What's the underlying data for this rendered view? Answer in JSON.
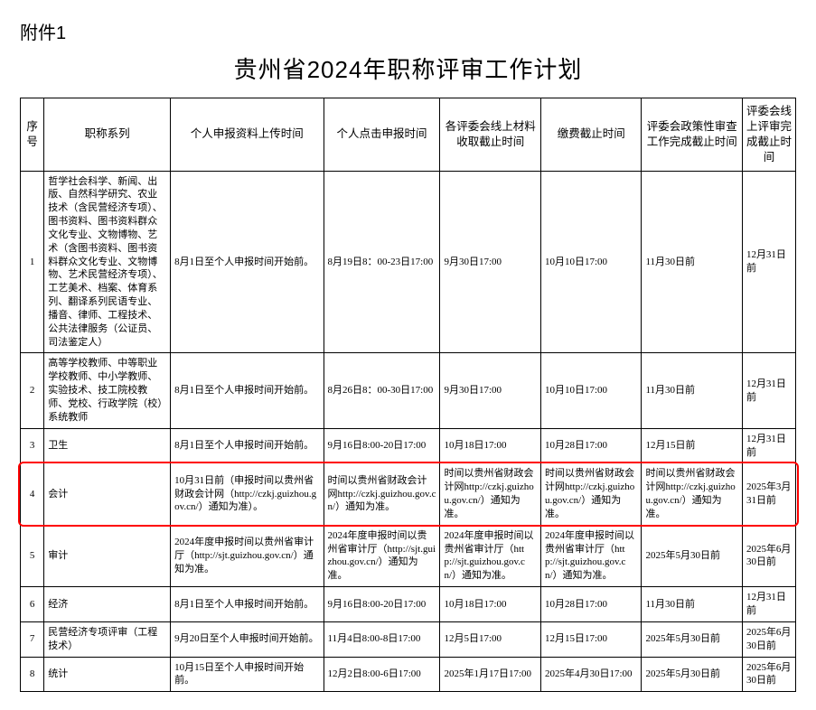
{
  "attachment_label": "附件1",
  "title": "贵州省2024年职称评审工作计划",
  "headers": {
    "idx": "序号",
    "series": "职称系列",
    "upload": "个人申报资料上传时间",
    "submit": "个人点击申报时间",
    "collect": "各评委会线上材料收取截止时间",
    "pay": "缴费截止时间",
    "policy": "评委会政策性审查工作完成截止时间",
    "finish": "评委会线上评审完成截止时间"
  },
  "rows": [
    {
      "idx": "1",
      "series": "哲学社会科学、新闻、出版、自然科学研究、农业技术（含民营经济专项）、图书资料、图书资料群众文化专业、文物博物、艺术（含图书资料、图书资料群众文化专业、文物博物、艺术民营经济专项）、工艺美术、档案、体育系列、翻译系列民语专业、播音、律师、工程技术、公共法律服务（公证员、司法鉴定人）",
      "upload": "8月1日至个人申报时间开始前。",
      "submit": "8月19日8：00-23日17:00",
      "collect": "9月30日17:00",
      "pay": "10月10日17:00",
      "policy": "11月30日前",
      "finish": "12月31日前"
    },
    {
      "idx": "2",
      "series": "高等学校教师、中等职业学校教师、中小学教师、实验技术、技工院校教师、党校、行政学院（校）系统教师",
      "upload": "8月1日至个人申报时间开始前。",
      "submit": "8月26日8：00-30日17:00",
      "collect": "9月30日17:00",
      "pay": "10月10日17:00",
      "policy": "11月30日前",
      "finish": "12月31日前"
    },
    {
      "idx": "3",
      "series": "卫生",
      "upload": "8月1日至个人申报时间开始前。",
      "submit": "9月16日8:00-20日17:00",
      "collect": "10月18日17:00",
      "pay": "10月28日17:00",
      "policy": "12月15日前",
      "finish": "12月31日前"
    },
    {
      "idx": "4",
      "series": "会计",
      "upload": "10月31日前（申报时间以贵州省财政会计网（http://czkj.guizhou.gov.cn/）通知为准）。",
      "submit": "时间以贵州省财政会计网http://czkj.guizhou.gov.cn/）通知为准。",
      "collect": "时间以贵州省财政会计网http://czkj.guizhou.gov.cn/）通知为准。",
      "pay": "时间以贵州省财政会计网http://czkj.guizhou.gov.cn/）通知为准。",
      "policy": "时间以贵州省财政会计网http://czkj.guizhou.gov.cn/）通知为准。",
      "finish": "2025年3月31日前"
    },
    {
      "idx": "5",
      "series": "审计",
      "upload": "2024年度申报时间以贵州省审计厅（http://sjt.guizhou.gov.cn/）通知为准。",
      "submit": "2024年度申报时间以贵州省审计厅（http://sjt.guizhou.gov.cn/）通知为准。",
      "collect": "2024年度申报时间以贵州省审计厅（http://sjt.guizhou.gov.cn/）通知为准。",
      "pay": "2024年度申报时间以贵州省审计厅（http://sjt.guizhou.gov.cn/）通知为准。",
      "policy": "2025年5月30日前",
      "finish": "2025年6月30日前"
    },
    {
      "idx": "6",
      "series": "经济",
      "upload": "8月1日至个人申报时间开始前。",
      "submit": "9月16日8:00-20日17:00",
      "collect": "10月18日17:00",
      "pay": "10月28日17:00",
      "policy": "11月30日前",
      "finish": "12月31日前"
    },
    {
      "idx": "7",
      "series": "民营经济专项评审（工程技术）",
      "upload": "9月20日至个人申报时间开始前。",
      "submit": "11月4日8:00-8日17:00",
      "collect": "12月5日17:00",
      "pay": "12月15日17:00",
      "policy": "2025年5月30日前",
      "finish": "2025年6月30日前"
    },
    {
      "idx": "8",
      "series": "统计",
      "upload": "10月15日至个人申报时间开始前。",
      "submit": "12月2日8:00-6日17:00",
      "collect": "2025年1月17日17:00",
      "pay": "2025年4月30日17:00",
      "policy": "2025年5月30日前",
      "finish": "2025年6月30日前"
    }
  ],
  "highlight": {
    "row_idx": "4",
    "border_color": "#ff0000"
  }
}
